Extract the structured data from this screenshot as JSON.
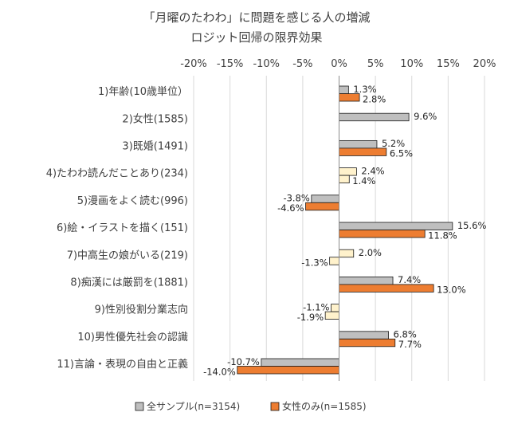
{
  "chart_data": {
    "type": "bar",
    "orientation": "horizontal",
    "title_lines": [
      "「月曜のたわわ」に問題を感じる人の増減",
      "ロジット回帰の限界効果"
    ],
    "x_ticks": [
      "-20%",
      "-15%",
      "-10%",
      "-5%",
      "0%",
      "5%",
      "10%",
      "15%",
      "20%"
    ],
    "xlim": [
      -20,
      20
    ],
    "grid": true,
    "legend_position": "bottom",
    "categories": [
      "1)年齢(10歳単位）",
      "2)女性(1585)",
      "3)既婚(1491)",
      "4)たわわ読んだことあり(234)",
      "5)漫画をよく読む(996)",
      "6)絵・イラストを描く(151)",
      "7)中高生の娘がいる(219)",
      "8)痴漢には厳罰を(1881)",
      "9)性別役割分業志向",
      "10)男性優先社会の認識",
      "11)言論・表現の自由と正義"
    ],
    "series": [
      {
        "name": "全サンプル(n=3154)",
        "color": "#bfbfbf",
        "values": [
          1.3,
          9.6,
          5.2,
          2.4,
          -3.8,
          15.6,
          2.0,
          7.4,
          -1.1,
          6.8,
          -10.7
        ],
        "labels": [
          "1.3%",
          "9.6%",
          "5.2%",
          "2.4%",
          "-3.8%",
          "15.6%",
          "2.0%",
          "7.4%",
          "-1.1%",
          "6.8%",
          "-10.7%"
        ],
        "pale_fill": [
          false,
          false,
          false,
          true,
          false,
          false,
          true,
          false,
          true,
          false,
          false
        ]
      },
      {
        "name": "女性のみ(n=1585)",
        "color": "#ed7d31",
        "values": [
          2.8,
          null,
          6.5,
          1.4,
          -4.6,
          11.8,
          -1.3,
          13.0,
          -1.9,
          7.7,
          -14.0
        ],
        "labels": [
          "2.8%",
          "",
          "6.5%",
          "1.4%",
          "-4.6%",
          "11.8%",
          "-1.3%",
          "13.0%",
          "-1.9%",
          "7.7%",
          "-14.0%"
        ],
        "pale_fill": [
          false,
          false,
          false,
          true,
          false,
          false,
          true,
          false,
          true,
          false,
          false
        ]
      }
    ],
    "pale_color": "#fff2cc"
  }
}
